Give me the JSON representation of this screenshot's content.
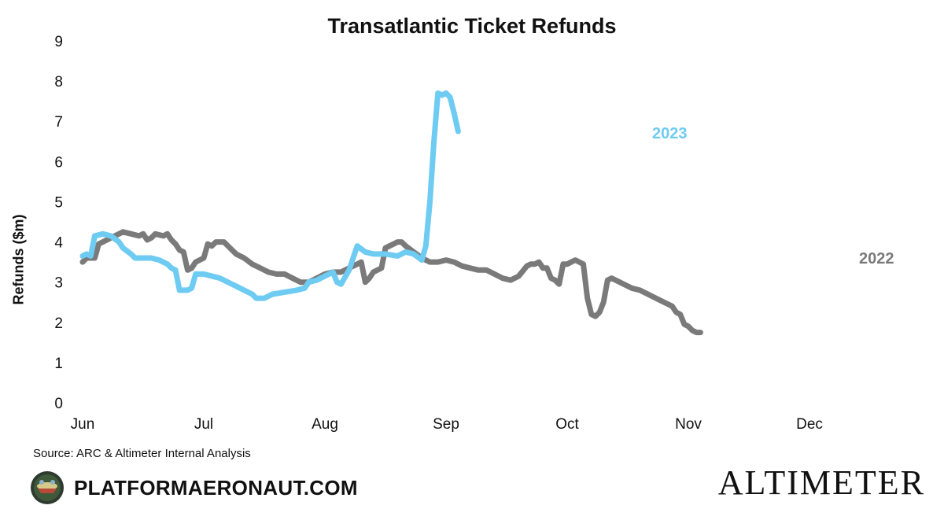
{
  "header": {
    "title": "Transatlantic Ticket Refunds"
  },
  "footer": {
    "source": "Source: ARC & Altimeter Internal Analysis",
    "brand_left": "PLATFORMAERONAUT.COM",
    "brand_right": "ALTIMETER"
  },
  "colors": {
    "y2022": "#7a7a7a",
    "y2023": "#6ecbf2"
  },
  "chart_data": {
    "type": "line",
    "title": "Transatlantic Ticket Refunds",
    "xlabel": "",
    "ylabel": "Refunds ($m)",
    "ylim": [
      0,
      9
    ],
    "yticks": [
      "0",
      "1",
      "2",
      "3",
      "4",
      "5",
      "6",
      "7",
      "8",
      "9"
    ],
    "xticks": [
      {
        "label": "Jun",
        "day": 0
      },
      {
        "label": "Jul",
        "day": 30
      },
      {
        "label": "Aug",
        "day": 60
      },
      {
        "label": "Sep",
        "day": 90
      },
      {
        "label": "Oct",
        "day": 120
      },
      {
        "label": "Nov",
        "day": 150
      },
      {
        "label": "Dec",
        "day": 180
      }
    ],
    "grid": false,
    "legend": "direct labels at line ends",
    "series": [
      {
        "name": "2022",
        "color": "#7a7a7a",
        "points": [
          [
            0,
            3.5
          ],
          [
            1,
            3.6
          ],
          [
            3,
            3.6
          ],
          [
            4,
            3.95
          ],
          [
            6,
            4.05
          ],
          [
            8,
            4.15
          ],
          [
            10,
            4.25
          ],
          [
            12,
            4.2
          ],
          [
            14,
            4.15
          ],
          [
            15,
            4.2
          ],
          [
            16,
            4.05
          ],
          [
            17,
            4.1
          ],
          [
            18,
            4.2
          ],
          [
            20,
            4.15
          ],
          [
            21,
            4.2
          ],
          [
            22,
            4.05
          ],
          [
            23,
            3.95
          ],
          [
            24,
            3.8
          ],
          [
            25,
            3.75
          ],
          [
            26,
            3.3
          ],
          [
            27,
            3.35
          ],
          [
            28,
            3.5
          ],
          [
            30,
            3.6
          ],
          [
            31,
            3.95
          ],
          [
            32,
            3.9
          ],
          [
            33,
            4.0
          ],
          [
            35,
            4.0
          ],
          [
            36,
            3.9
          ],
          [
            38,
            3.7
          ],
          [
            40,
            3.6
          ],
          [
            42,
            3.45
          ],
          [
            44,
            3.35
          ],
          [
            46,
            3.25
          ],
          [
            48,
            3.2
          ],
          [
            50,
            3.2
          ],
          [
            52,
            3.1
          ],
          [
            54,
            3.0
          ],
          [
            56,
            3.0
          ],
          [
            58,
            3.1
          ],
          [
            60,
            3.2
          ],
          [
            62,
            3.25
          ],
          [
            64,
            3.25
          ],
          [
            66,
            3.35
          ],
          [
            68,
            3.45
          ],
          [
            69,
            3.5
          ],
          [
            70,
            3.0
          ],
          [
            71,
            3.1
          ],
          [
            72,
            3.25
          ],
          [
            74,
            3.35
          ],
          [
            75,
            3.85
          ],
          [
            76,
            3.9
          ],
          [
            78,
            4.0
          ],
          [
            79,
            4.0
          ],
          [
            80,
            3.9
          ],
          [
            82,
            3.75
          ],
          [
            84,
            3.6
          ],
          [
            86,
            3.5
          ],
          [
            88,
            3.5
          ],
          [
            90,
            3.55
          ],
          [
            92,
            3.5
          ],
          [
            94,
            3.4
          ],
          [
            96,
            3.35
          ],
          [
            98,
            3.3
          ],
          [
            100,
            3.3
          ],
          [
            102,
            3.2
          ],
          [
            104,
            3.1
          ],
          [
            106,
            3.05
          ],
          [
            108,
            3.15
          ],
          [
            110,
            3.4
          ],
          [
            111,
            3.45
          ],
          [
            112,
            3.45
          ],
          [
            113,
            3.5
          ],
          [
            114,
            3.35
          ],
          [
            115,
            3.35
          ],
          [
            116,
            3.1
          ],
          [
            117,
            3.05
          ],
          [
            118,
            2.95
          ],
          [
            119,
            3.45
          ],
          [
            120,
            3.45
          ],
          [
            121,
            3.5
          ],
          [
            122,
            3.55
          ],
          [
            123,
            3.5
          ],
          [
            124,
            3.45
          ],
          [
            125,
            2.6
          ],
          [
            126,
            2.2
          ],
          [
            127,
            2.15
          ],
          [
            128,
            2.25
          ],
          [
            129,
            2.5
          ],
          [
            130,
            3.05
          ],
          [
            131,
            3.1
          ],
          [
            132,
            3.05
          ],
          [
            134,
            2.95
          ],
          [
            136,
            2.85
          ],
          [
            138,
            2.8
          ],
          [
            140,
            2.7
          ],
          [
            142,
            2.6
          ],
          [
            144,
            2.5
          ],
          [
            146,
            2.4
          ],
          [
            147,
            2.25
          ],
          [
            148,
            2.2
          ],
          [
            149,
            1.95
          ],
          [
            150,
            1.9
          ],
          [
            151,
            1.8
          ],
          [
            152,
            1.75
          ],
          [
            153,
            1.75
          ]
        ]
      },
      {
        "name": "2023",
        "color": "#6ecbf2",
        "points": [
          [
            0,
            3.65
          ],
          [
            1,
            3.7
          ],
          [
            2,
            3.65
          ],
          [
            3,
            4.15
          ],
          [
            5,
            4.2
          ],
          [
            7,
            4.15
          ],
          [
            9,
            4.0
          ],
          [
            10,
            3.85
          ],
          [
            12,
            3.7
          ],
          [
            13,
            3.6
          ],
          [
            15,
            3.6
          ],
          [
            17,
            3.6
          ],
          [
            19,
            3.55
          ],
          [
            21,
            3.45
          ],
          [
            22,
            3.35
          ],
          [
            23,
            3.3
          ],
          [
            24,
            2.8
          ],
          [
            25,
            2.8
          ],
          [
            26,
            2.8
          ],
          [
            27,
            2.85
          ],
          [
            28,
            3.2
          ],
          [
            30,
            3.2
          ],
          [
            32,
            3.15
          ],
          [
            34,
            3.1
          ],
          [
            36,
            3.0
          ],
          [
            38,
            2.9
          ],
          [
            40,
            2.8
          ],
          [
            42,
            2.7
          ],
          [
            43,
            2.6
          ],
          [
            45,
            2.6
          ],
          [
            47,
            2.7
          ],
          [
            50,
            2.75
          ],
          [
            53,
            2.8
          ],
          [
            55,
            2.85
          ],
          [
            56,
            3.0
          ],
          [
            58,
            3.05
          ],
          [
            60,
            3.15
          ],
          [
            62,
            3.25
          ],
          [
            63,
            3.0
          ],
          [
            64,
            2.95
          ],
          [
            66,
            3.3
          ],
          [
            67,
            3.6
          ],
          [
            68,
            3.9
          ],
          [
            70,
            3.75
          ],
          [
            72,
            3.7
          ],
          [
            75,
            3.7
          ],
          [
            78,
            3.65
          ],
          [
            80,
            3.75
          ],
          [
            82,
            3.7
          ],
          [
            84,
            3.55
          ],
          [
            85,
            3.9
          ],
          [
            86,
            5.0
          ],
          [
            87,
            6.5
          ],
          [
            88,
            7.7
          ],
          [
            89,
            7.65
          ],
          [
            90,
            7.7
          ],
          [
            91,
            7.6
          ],
          [
            92,
            7.2
          ],
          [
            93,
            6.75
          ]
        ]
      }
    ],
    "annotations": [
      {
        "text": "2023",
        "series": "2023"
      },
      {
        "text": "2022",
        "series": "2022"
      }
    ]
  }
}
